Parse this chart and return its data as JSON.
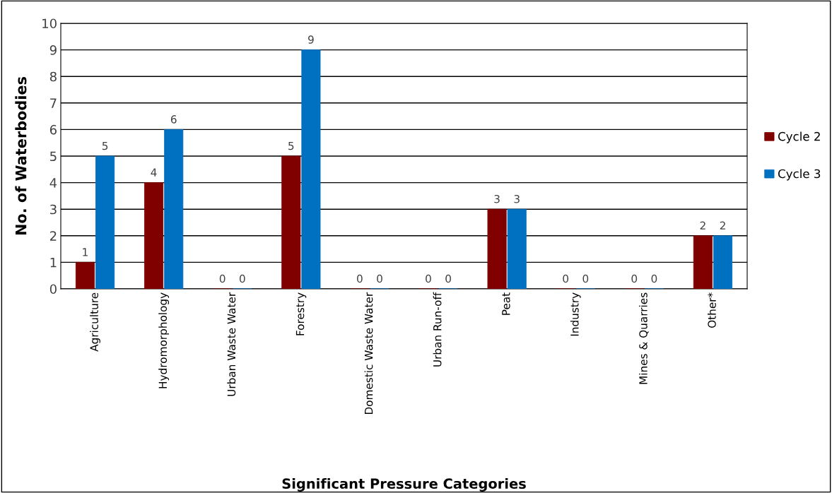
{
  "chart_data": {
    "type": "bar",
    "xlabel": "Significant Pressure Categories",
    "ylabel": "No. of Waterbodies",
    "categories": [
      "Agriculture",
      "Hydromorphology",
      "Urban Waste Water",
      "Forestry",
      "Domestic Waste Water",
      "Urban Run-off",
      "Peat",
      "Industry",
      "Mines & Quarries",
      "Other*"
    ],
    "series": [
      {
        "name": "Cycle 2",
        "color": "#800000",
        "values": [
          1,
          4,
          0,
          5,
          0,
          0,
          3,
          0,
          0,
          2
        ]
      },
      {
        "name": "Cycle 3",
        "color": "#0070c0",
        "values": [
          5,
          6,
          0,
          9,
          0,
          0,
          3,
          0,
          0,
          2
        ]
      }
    ],
    "ylim": [
      0,
      10
    ],
    "yticks": [
      0,
      1,
      2,
      3,
      4,
      5,
      6,
      7,
      8,
      9,
      10
    ],
    "grid": "y",
    "legend": "right",
    "data_labels": true
  }
}
